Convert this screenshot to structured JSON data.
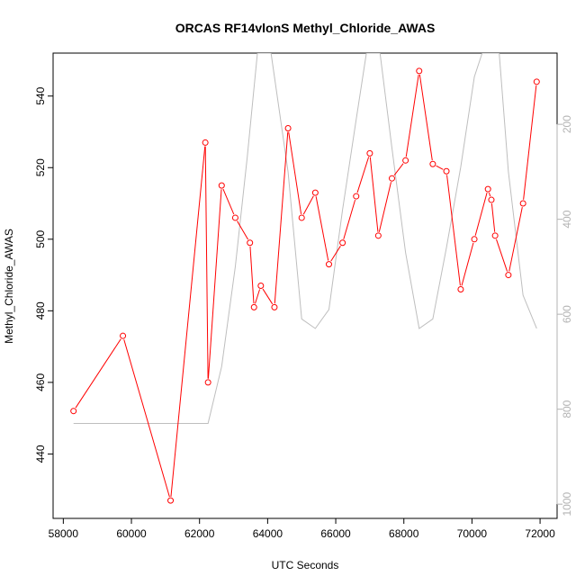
{
  "chart_data": {
    "type": "line",
    "title": "ORCAS RF14vlonS Methyl_Chloride_AWAS",
    "xlabel": "UTC Seconds",
    "ylabel": "Methyl_Chloride_AWAS",
    "xlim": [
      57700,
      72500
    ],
    "ylim": [
      422,
      552
    ],
    "x_ticks": [
      58000,
      60000,
      62000,
      64000,
      66000,
      68000,
      70000,
      72000
    ],
    "y_ticks": [
      440,
      460,
      480,
      500,
      520,
      540
    ],
    "y2_ticks": [
      200,
      400,
      600,
      800,
      1000
    ],
    "y2_reversed": true,
    "y2lim": [
      50,
      1030
    ],
    "grid": false,
    "colors": {
      "series": "#ff0000",
      "secondary": "#bebebe",
      "axis": "#000000",
      "axis2_text": "#b3b3b3"
    },
    "series": [
      {
        "values": [
          [
            58300,
            452
          ],
          [
            59750,
            473
          ],
          [
            61150,
            427
          ],
          [
            62170,
            527
          ],
          [
            62250,
            460
          ],
          [
            62650,
            515
          ],
          [
            63050,
            506
          ],
          [
            63480,
            499
          ],
          [
            63600,
            481
          ],
          [
            63800,
            487
          ],
          [
            64200,
            481
          ],
          [
            64600,
            531
          ],
          [
            65000,
            506
          ],
          [
            65400,
            513
          ],
          [
            65800,
            493
          ],
          [
            66200,
            499
          ],
          [
            66600,
            512
          ],
          [
            67000,
            524
          ],
          [
            67250,
            501
          ],
          [
            67650,
            517
          ],
          [
            68050,
            522
          ],
          [
            68450,
            547
          ],
          [
            68850,
            521
          ],
          [
            69250,
            519
          ],
          [
            69670,
            486
          ],
          [
            70070,
            500
          ],
          [
            70470,
            514
          ],
          [
            70570,
            511
          ],
          [
            70680,
            501
          ],
          [
            71070,
            490
          ],
          [
            71500,
            510
          ],
          [
            71900,
            544
          ]
        ]
      },
      {
        "axis": "right",
        "values": [
          [
            58300,
            830
          ],
          [
            59750,
            830
          ],
          [
            61150,
            830
          ],
          [
            62250,
            830
          ],
          [
            62650,
            710
          ],
          [
            63050,
            500
          ],
          [
            63400,
            270
          ],
          [
            63700,
            50
          ],
          [
            64100,
            50
          ],
          [
            64600,
            300
          ],
          [
            65000,
            610
          ],
          [
            65400,
            630
          ],
          [
            65800,
            590
          ],
          [
            66200,
            380
          ],
          [
            66600,
            190
          ],
          [
            66900,
            50
          ],
          [
            67300,
            50
          ],
          [
            67650,
            250
          ],
          [
            68050,
            470
          ],
          [
            68450,
            630
          ],
          [
            68850,
            610
          ],
          [
            69250,
            460
          ],
          [
            69670,
            290
          ],
          [
            70070,
            100
          ],
          [
            70300,
            50
          ],
          [
            70800,
            50
          ],
          [
            71070,
            300
          ],
          [
            71500,
            560
          ],
          [
            71900,
            630
          ]
        ]
      }
    ]
  }
}
